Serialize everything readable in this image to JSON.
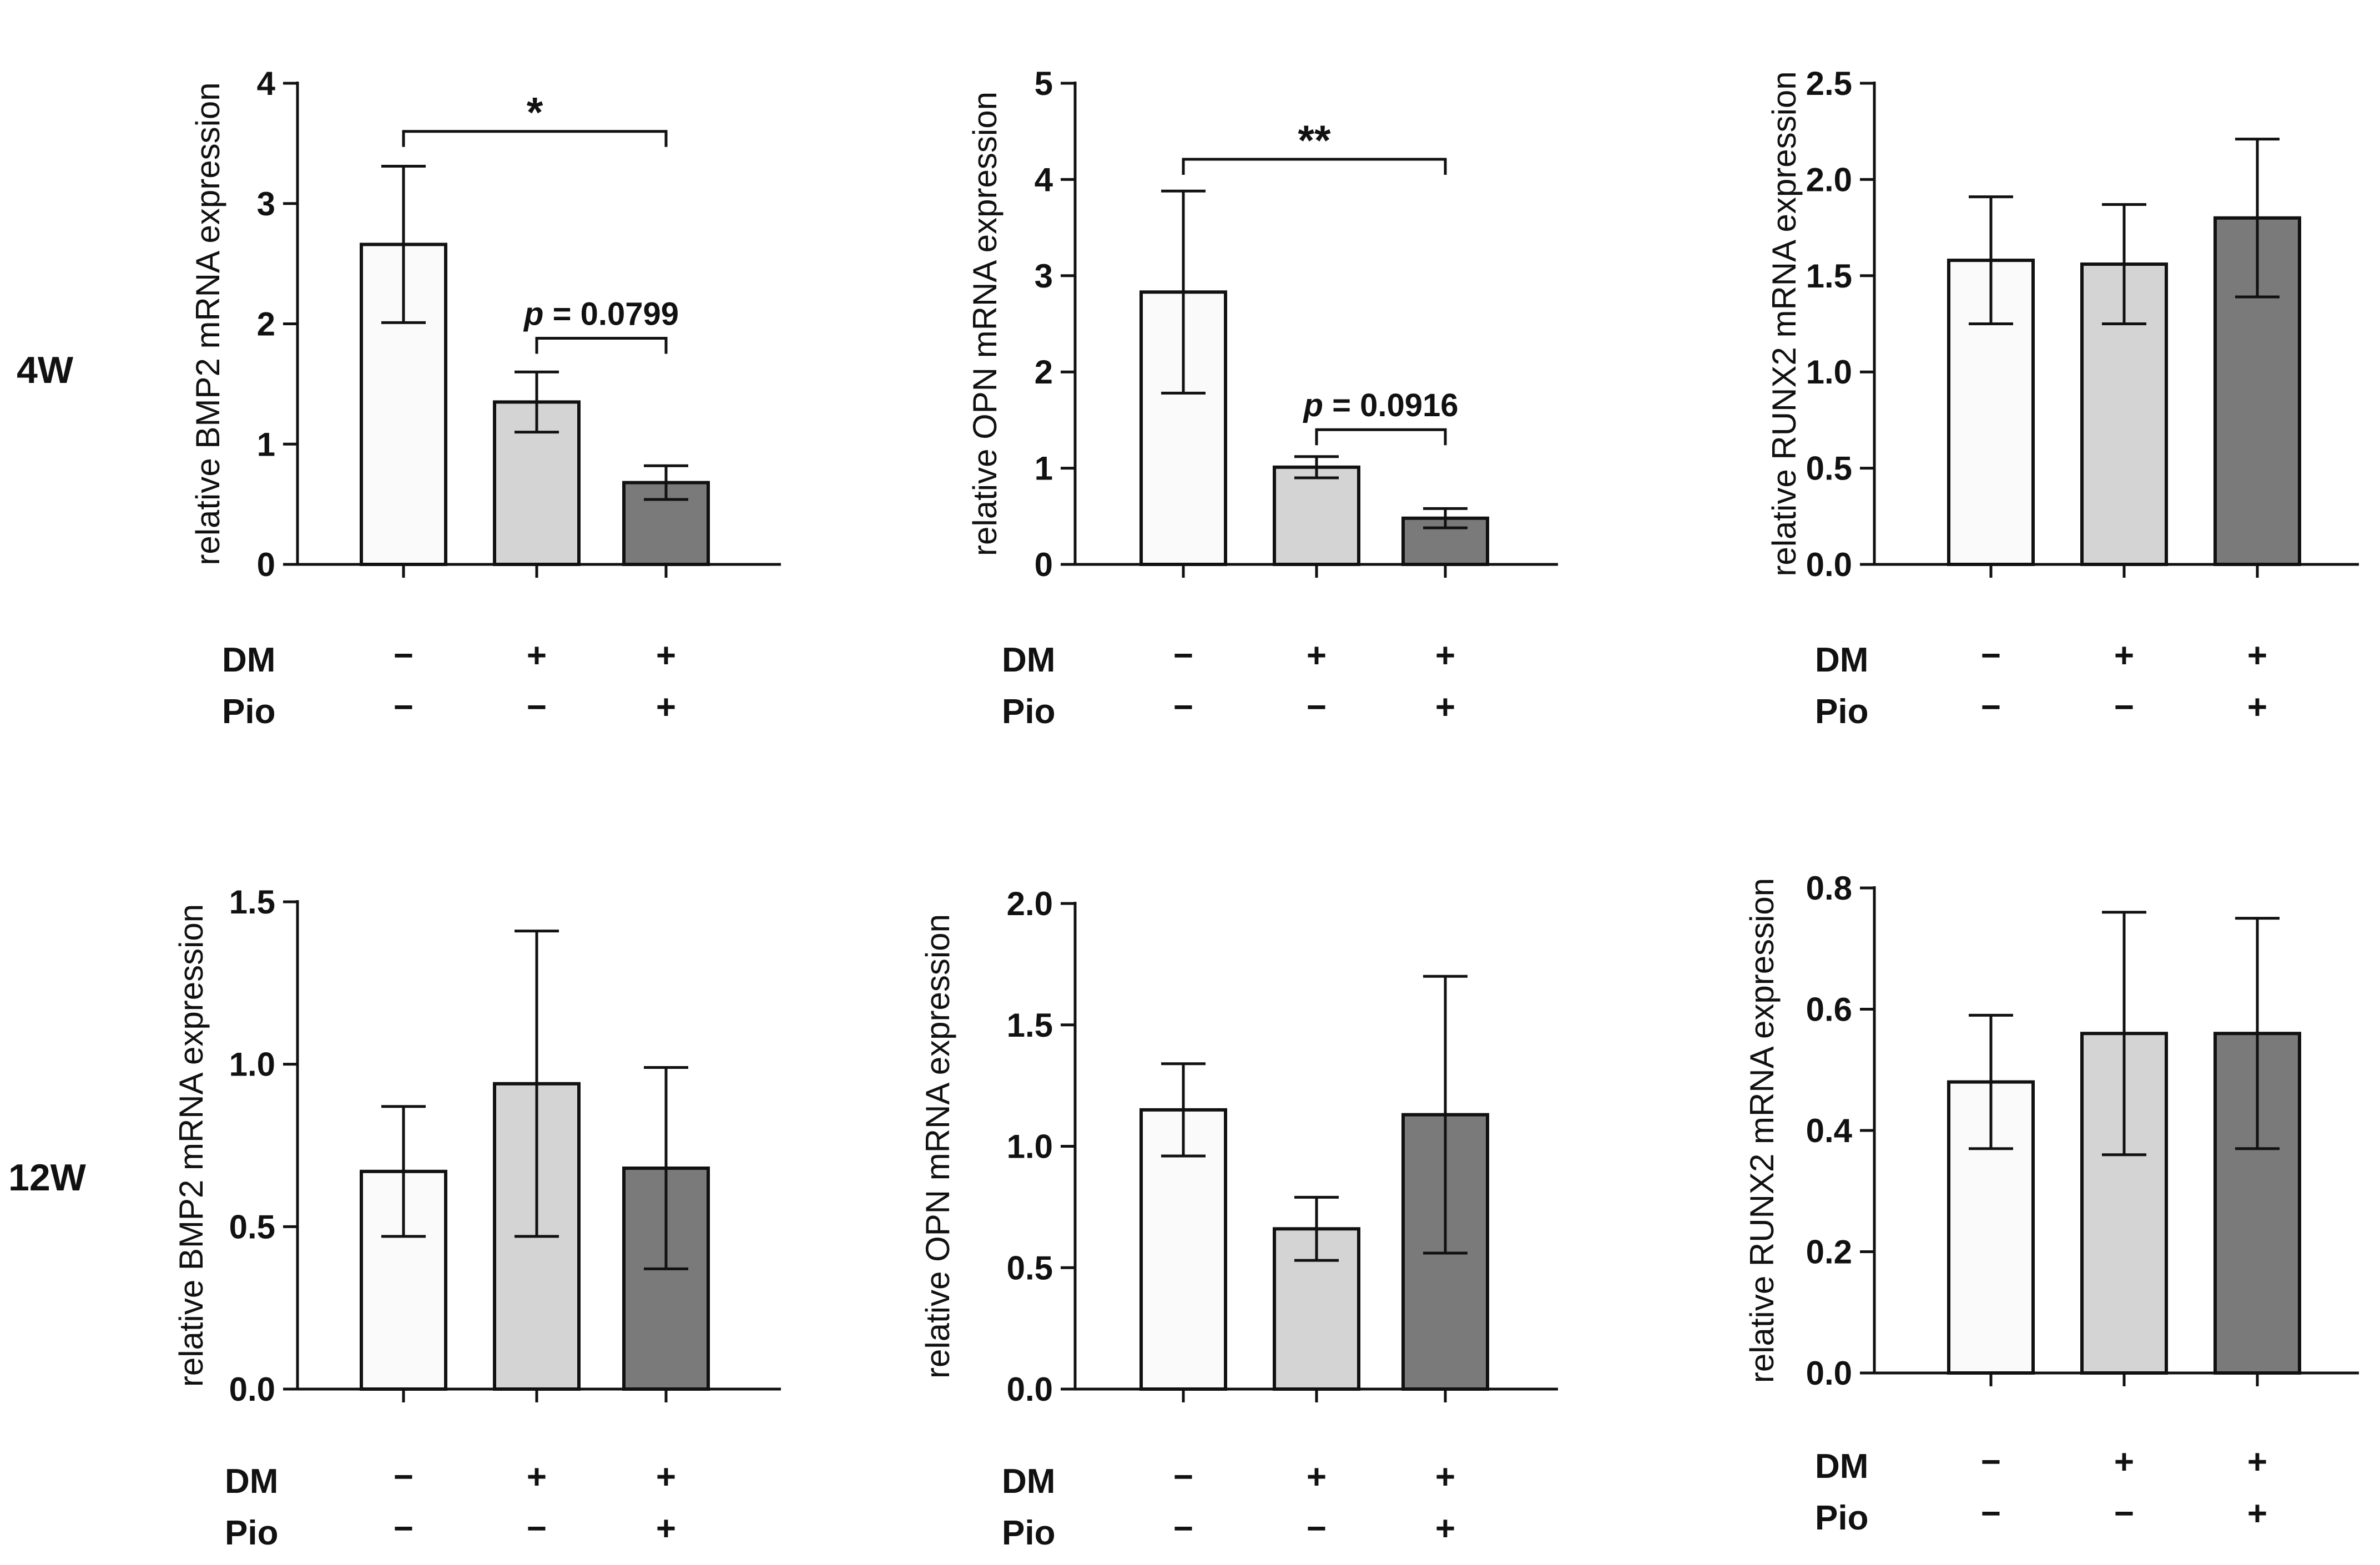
{
  "row_labels": [
    "4W",
    "12W"
  ],
  "group_rows": [
    {
      "label": "DM",
      "marks": [
        "−",
        "+",
        "+"
      ]
    },
    {
      "label": "Pio",
      "marks": [
        "−",
        "−",
        "+"
      ]
    }
  ],
  "colors": {
    "control": "#fafafa",
    "dm": "#d4d4d4",
    "dm_pio": "#7a7a7a",
    "axis": "#111111"
  },
  "chart_data": [
    {
      "id": "bmp2-4w",
      "type": "bar",
      "row": "4W",
      "ylabel": "relative BMP2 mRNA expression",
      "ylim": [
        0,
        4
      ],
      "yticks": [
        "0",
        "1",
        "2",
        "3",
        "4"
      ],
      "categories": [
        "DM− Pio−",
        "DM+ Pio−",
        "DM+ Pio+"
      ],
      "values": [
        2.66,
        1.35,
        0.68
      ],
      "errors": [
        0.65,
        0.25,
        0.14
      ],
      "annotations": [
        {
          "label": "*",
          "italic_prefix": "",
          "from": 0,
          "to": 2,
          "level": 3.6
        },
        {
          "label": " = 0.0799",
          "italic_prefix": "p",
          "from": 1,
          "to": 2,
          "level": 1.88
        }
      ]
    },
    {
      "id": "opn-4w",
      "type": "bar",
      "row": "4W",
      "ylabel": "relative OPN mRNA expression",
      "ylim": [
        0,
        5
      ],
      "yticks": [
        "0",
        "1",
        "2",
        "3",
        "4",
        "5"
      ],
      "categories": [
        "DM− Pio−",
        "DM+ Pio−",
        "DM+ Pio+"
      ],
      "values": [
        2.83,
        1.01,
        0.48
      ],
      "errors": [
        1.05,
        0.11,
        0.1
      ],
      "annotations": [
        {
          "label": "**",
          "italic_prefix": "",
          "from": 0,
          "to": 2,
          "level": 4.21
        },
        {
          "label": " = 0.0916",
          "italic_prefix": "p",
          "from": 1,
          "to": 2,
          "level": 1.4
        }
      ]
    },
    {
      "id": "runx2-4w",
      "type": "bar",
      "row": "4W",
      "ylabel": "relative RUNX2 mRNA expression",
      "ylim": [
        0,
        2.5
      ],
      "yticks": [
        "0.0",
        "0.5",
        "1.0",
        "1.5",
        "2.0",
        "2.5"
      ],
      "categories": [
        "DM− Pio−",
        "DM+ Pio−",
        "DM+ Pio+"
      ],
      "values": [
        1.58,
        1.56,
        1.8
      ],
      "errors": [
        0.33,
        0.31,
        0.41
      ],
      "annotations": []
    },
    {
      "id": "bmp2-12w",
      "type": "bar",
      "row": "12W",
      "ylabel": "relative BMP2 mRNA expression",
      "ylim": [
        0,
        1.5
      ],
      "yticks": [
        "0.0",
        "0.5",
        "1.0",
        "1.5"
      ],
      "categories": [
        "DM− Pio−",
        "DM+ Pio−",
        "DM+ Pio+"
      ],
      "values": [
        0.67,
        0.94,
        0.68
      ],
      "errors": [
        0.2,
        0.47,
        0.31
      ],
      "annotations": []
    },
    {
      "id": "opn-12w",
      "type": "bar",
      "row": "12W",
      "ylabel": "relative OPN mRNA expression",
      "ylim": [
        0,
        2.0
      ],
      "yticks": [
        "0.0",
        "0.5",
        "1.0",
        "1.5",
        "2.0"
      ],
      "categories": [
        "DM− Pio−",
        "DM+ Pio−",
        "DM+ Pio+"
      ],
      "values": [
        1.15,
        0.66,
        1.13
      ],
      "errors": [
        0.19,
        0.13,
        0.57
      ],
      "annotations": []
    },
    {
      "id": "runx2-12w",
      "type": "bar",
      "row": "12W",
      "ylabel": "relative RUNX2 mRNA expression",
      "ylim": [
        0,
        0.8
      ],
      "yticks": [
        "0.0",
        "0.2",
        "0.4",
        "0.6",
        "0.8"
      ],
      "categories": [
        "DM− Pio−",
        "DM+ Pio−",
        "DM+ Pio+"
      ],
      "values": [
        0.48,
        0.56,
        0.56
      ],
      "errors": [
        0.11,
        0.2,
        0.19
      ],
      "annotations": []
    }
  ]
}
